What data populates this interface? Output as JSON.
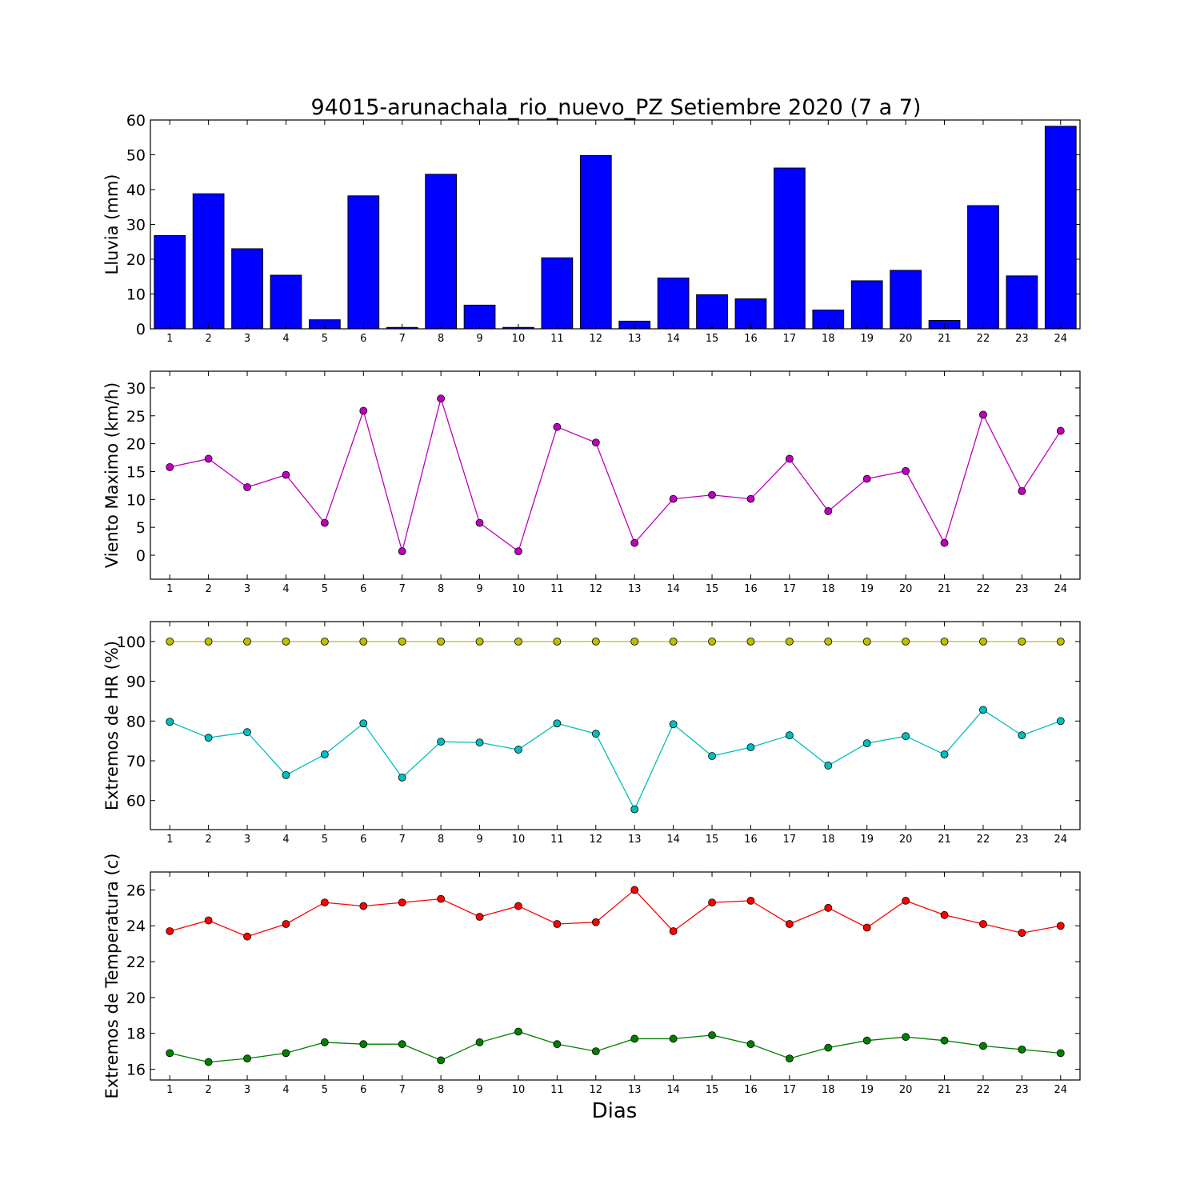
{
  "title": "94015-arunachala_rio_nuevo_PZ Setiembre 2020  (7 a 7)",
  "xlabel": "Dias",
  "chart_data": [
    {
      "type": "bar",
      "ylabel": "Lluvia (mm)",
      "ylim": [
        0,
        60
      ],
      "yticks": [
        0,
        10,
        20,
        30,
        40,
        50,
        60
      ],
      "x": [
        1,
        2,
        3,
        4,
        5,
        6,
        7,
        8,
        9,
        10,
        11,
        12,
        13,
        14,
        15,
        16,
        17,
        18,
        19,
        20,
        21,
        22,
        23,
        24
      ],
      "series": [
        {
          "color": "#0000ff",
          "values": [
            26.8,
            38.8,
            23.0,
            15.4,
            2.6,
            38.2,
            0.4,
            44.4,
            6.8,
            0.4,
            20.4,
            49.8,
            2.2,
            14.6,
            9.8,
            8.6,
            46.2,
            5.4,
            13.8,
            16.8,
            2.4,
            35.4,
            15.2,
            58.2
          ]
        }
      ]
    },
    {
      "type": "line",
      "ylabel": "Viento Maximo (km/h)",
      "ylim": [
        -4.3,
        33
      ],
      "yticks": [
        0,
        5,
        10,
        15,
        20,
        25,
        30
      ],
      "x": [
        1,
        2,
        3,
        4,
        5,
        6,
        7,
        8,
        9,
        10,
        11,
        12,
        13,
        14,
        15,
        16,
        17,
        18,
        19,
        20,
        21,
        22,
        23,
        24
      ],
      "series": [
        {
          "color": "#bf00bf",
          "values": [
            15.8,
            17.3,
            12.2,
            14.4,
            5.8,
            25.9,
            0.7,
            28.1,
            5.8,
            0.7,
            23.0,
            20.2,
            2.2,
            10.1,
            10.8,
            10.1,
            17.3,
            7.9,
            13.7,
            15.1,
            2.2,
            25.2,
            11.5,
            22.3
          ]
        }
      ]
    },
    {
      "type": "line",
      "ylabel": "Extremos de HR (%)",
      "ylim": [
        52.7,
        105
      ],
      "yticks": [
        60,
        70,
        80,
        90,
        100
      ],
      "x": [
        1,
        2,
        3,
        4,
        5,
        6,
        7,
        8,
        9,
        10,
        11,
        12,
        13,
        14,
        15,
        16,
        17,
        18,
        19,
        20,
        21,
        22,
        23,
        24
      ],
      "series": [
        {
          "color": "#bfbf00",
          "values": [
            100,
            100,
            100,
            100,
            100,
            100,
            100,
            100,
            100,
            100,
            100,
            100,
            100,
            100,
            100,
            100,
            100,
            100,
            100,
            100,
            100,
            100,
            100,
            100
          ]
        },
        {
          "color": "#00bfbf",
          "values": [
            79.8,
            75.8,
            77.2,
            66.4,
            71.6,
            79.4,
            65.8,
            74.8,
            74.6,
            72.8,
            79.4,
            76.8,
            57.8,
            79.2,
            71.2,
            73.4,
            76.4,
            68.8,
            74.4,
            76.2,
            71.6,
            82.8,
            76.4,
            80.0
          ]
        }
      ]
    },
    {
      "type": "line",
      "ylabel": "Extremos de Temperatura (c)",
      "ylim": [
        15.4,
        27
      ],
      "yticks": [
        16,
        18,
        20,
        22,
        24,
        26
      ],
      "x": [
        1,
        2,
        3,
        4,
        5,
        6,
        7,
        8,
        9,
        10,
        11,
        12,
        13,
        14,
        15,
        16,
        17,
        18,
        19,
        20,
        21,
        22,
        23,
        24
      ],
      "series": [
        {
          "color": "#ff0000",
          "values": [
            23.7,
            24.3,
            23.4,
            24.1,
            25.3,
            25.1,
            25.3,
            25.5,
            24.5,
            25.1,
            24.1,
            24.2,
            26.0,
            23.7,
            25.3,
            25.4,
            24.1,
            25.0,
            23.9,
            25.4,
            24.6,
            24.1,
            23.6,
            24.0
          ]
        },
        {
          "color": "#008000",
          "values": [
            16.9,
            16.4,
            16.6,
            16.9,
            17.5,
            17.4,
            17.4,
            16.5,
            17.5,
            18.1,
            17.4,
            17.0,
            17.7,
            17.7,
            17.9,
            17.4,
            16.6,
            17.2,
            17.6,
            17.8,
            17.6,
            17.3,
            17.1,
            16.9
          ]
        }
      ]
    }
  ]
}
